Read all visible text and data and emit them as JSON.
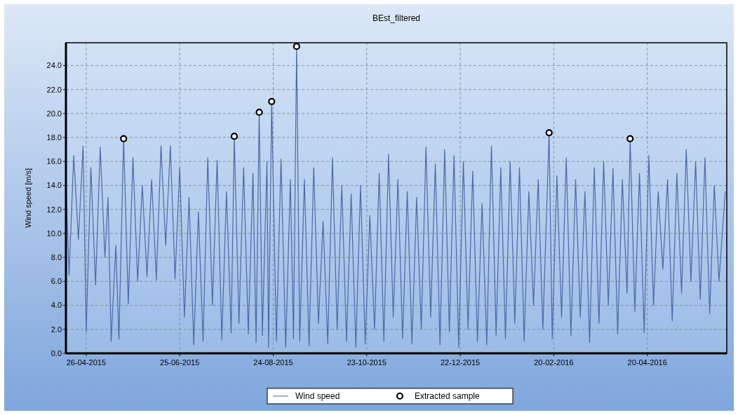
{
  "chart_data": {
    "type": "line",
    "title": "BEst_filtered",
    "ylabel": "Wind speed [m/s]",
    "xlim": [
      "2015-04-13",
      "2016-06-10"
    ],
    "xticks": [
      {
        "value": "2015-04-26",
        "label": "26-04-2015"
      },
      {
        "value": "2015-06-25",
        "label": "25-06-2015"
      },
      {
        "value": "2015-08-24",
        "label": "24-08-2015"
      },
      {
        "value": "2015-10-23",
        "label": "23-10-2015"
      },
      {
        "value": "2015-12-22",
        "label": "22-12-2015"
      },
      {
        "value": "2016-02-20",
        "label": "20-02-2016"
      },
      {
        "value": "2016-04-20",
        "label": "20-04-2016"
      }
    ],
    "ylim": [
      0,
      25.9
    ],
    "yticks": [
      {
        "value": 0,
        "label": "0.0"
      },
      {
        "value": 2,
        "label": "2.0"
      },
      {
        "value": 4,
        "label": "4.0"
      },
      {
        "value": 6,
        "label": "6.0"
      },
      {
        "value": 8,
        "label": "8.0"
      },
      {
        "value": 10,
        "label": "10.0"
      },
      {
        "value": 12,
        "label": "12.0"
      },
      {
        "value": 14,
        "label": "14.0"
      },
      {
        "value": 16,
        "label": "16.0"
      },
      {
        "value": 18,
        "label": "18.0"
      },
      {
        "value": 20,
        "label": "20.0"
      },
      {
        "value": 22,
        "label": "22.0"
      },
      {
        "value": 24,
        "label": "24.0"
      }
    ],
    "grid": true,
    "legend": "bottom",
    "series": [
      {
        "name": "Wind speed",
        "color": "#4a6aa5",
        "marker": "none",
        "line_style": "solid",
        "x": [
          "2015-04-13",
          "2015-04-15",
          "2015-04-18",
          "2015-04-21",
          "2015-04-24",
          "2015-04-26",
          "2015-04-29",
          "2015-05-02",
          "2015-05-05",
          "2015-05-08",
          "2015-05-10",
          "2015-05-12",
          "2015-05-15",
          "2015-05-17",
          "2015-05-20",
          "2015-05-23",
          "2015-05-26",
          "2015-05-29",
          "2015-06-01",
          "2015-06-04",
          "2015-06-07",
          "2015-06-10",
          "2015-06-13",
          "2015-06-16",
          "2015-06-19",
          "2015-06-22",
          "2015-06-25",
          "2015-06-28",
          "2015-07-01",
          "2015-07-04",
          "2015-07-07",
          "2015-07-10",
          "2015-07-13",
          "2015-07-16",
          "2015-07-19",
          "2015-07-22",
          "2015-07-25",
          "2015-07-28",
          "2015-07-30",
          "2015-08-02",
          "2015-08-05",
          "2015-08-08",
          "2015-08-11",
          "2015-08-13",
          "2015-08-15",
          "2015-08-17",
          "2015-08-20",
          "2015-08-21",
          "2015-08-23",
          "2015-08-26",
          "2015-08-29",
          "2015-09-01",
          "2015-09-04",
          "2015-09-06",
          "2015-09-08",
          "2015-09-10",
          "2015-09-13",
          "2015-09-16",
          "2015-09-19",
          "2015-09-22",
          "2015-09-25",
          "2015-09-28",
          "2015-10-01",
          "2015-10-04",
          "2015-10-07",
          "2015-10-10",
          "2015-10-13",
          "2015-10-16",
          "2015-10-19",
          "2015-10-22",
          "2015-10-25",
          "2015-10-28",
          "2015-10-31",
          "2015-11-03",
          "2015-11-06",
          "2015-11-09",
          "2015-11-12",
          "2015-11-15",
          "2015-11-18",
          "2015-11-21",
          "2015-11-24",
          "2015-11-27",
          "2015-11-30",
          "2015-12-03",
          "2015-12-06",
          "2015-12-09",
          "2015-12-12",
          "2015-12-15",
          "2015-12-18",
          "2015-12-21",
          "2015-12-24",
          "2015-12-27",
          "2015-12-30",
          "2016-01-02",
          "2016-01-05",
          "2016-01-08",
          "2016-01-11",
          "2016-01-14",
          "2016-01-17",
          "2016-01-20",
          "2016-01-23",
          "2016-01-26",
          "2016-01-29",
          "2016-02-01",
          "2016-02-04",
          "2016-02-07",
          "2016-02-10",
          "2016-02-13",
          "2016-02-17",
          "2016-02-19",
          "2016-02-22",
          "2016-02-25",
          "2016-02-28",
          "2016-03-02",
          "2016-03-05",
          "2016-03-08",
          "2016-03-11",
          "2016-03-14",
          "2016-03-17",
          "2016-03-20",
          "2016-03-23",
          "2016-03-26",
          "2016-03-29",
          "2016-04-01",
          "2016-04-04",
          "2016-04-07",
          "2016-04-09",
          "2016-04-12",
          "2016-04-15",
          "2016-04-18",
          "2016-04-21",
          "2016-04-24",
          "2016-04-27",
          "2016-04-30",
          "2016-05-03",
          "2016-05-06",
          "2016-05-09",
          "2016-05-12",
          "2016-05-15",
          "2016-05-18",
          "2016-05-21",
          "2016-05-24",
          "2016-05-27",
          "2016-05-30",
          "2016-06-02",
          "2016-06-05",
          "2016-06-09"
        ],
        "values": [
          14.5,
          6.5,
          16.5,
          9.5,
          17.3,
          1.8,
          15.5,
          5.7,
          17.2,
          8,
          13,
          1.0,
          9,
          1.2,
          17.9,
          4.1,
          16.3,
          6,
          14,
          6.4,
          14.5,
          6.1,
          17.3,
          9,
          17.3,
          6.2,
          15.5,
          3,
          13,
          0.7,
          11.8,
          1.0,
          16.3,
          4,
          16.1,
          1.1,
          13.5,
          1.7,
          18.1,
          2.5,
          15.5,
          1.6,
          15,
          0.9,
          20.1,
          1.5,
          16,
          0.5,
          21.0,
          1.0,
          16.2,
          0.5,
          14.5,
          1.2,
          25.6,
          1.0,
          14.5,
          0.6,
          15.5,
          2.5,
          11,
          0.8,
          16.3,
          2,
          14,
          1,
          13.3,
          0.5,
          14,
          0.8,
          11.5,
          2,
          15,
          1,
          16.6,
          3,
          14.5,
          1.2,
          13.5,
          0.8,
          13,
          2,
          17.2,
          3,
          15.8,
          0.7,
          17,
          1.8,
          16.5,
          0.5,
          16,
          2,
          15.2,
          1.0,
          12.5,
          0.7,
          17.3,
          1.5,
          15.5,
          1.2,
          16,
          2.5,
          15.5,
          1.0,
          13.5,
          4,
          14.5,
          2,
          18.4,
          1.2,
          14.8,
          3,
          16.3,
          1.5,
          14.5,
          3,
          13.5,
          0.9,
          15.5,
          2.5,
          16,
          4,
          15.4,
          1.6,
          14.5,
          5,
          17.9,
          3.5,
          15,
          1.7,
          16.5,
          4,
          13.5,
          7,
          14.5,
          2.7,
          15,
          5,
          17,
          6,
          16,
          4.5,
          16.3,
          3.3,
          14,
          6,
          13.5
        ]
      },
      {
        "name": "Extracted sample",
        "type": "scatter",
        "color": "#000000",
        "marker": "circle",
        "x": [
          "2015-05-20",
          "2015-07-30",
          "2015-08-15",
          "2015-08-23",
          "2015-09-08",
          "2016-02-17",
          "2016-04-09"
        ],
        "values": [
          17.9,
          18.1,
          20.1,
          21.0,
          25.6,
          18.4,
          17.9
        ]
      }
    ]
  }
}
